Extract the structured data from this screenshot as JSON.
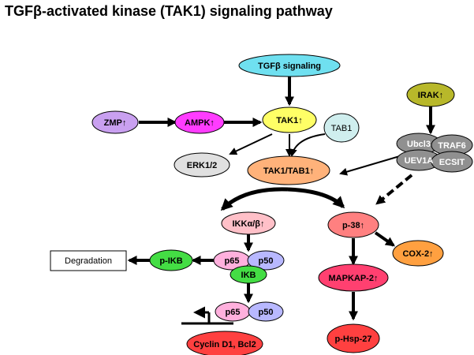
{
  "title": "TGFβ-activated kinase (TAK1) signaling pathway",
  "colors": {
    "tgfb": "#6fe0f0",
    "zmp": "#c9a0f0",
    "ampk": "#ff3cff",
    "tak1": "#ffff66",
    "tab1": "#cfeeee",
    "erk": "#e0e0e0",
    "tak_tab": "#ffb27a",
    "irak": "#b8b82a",
    "gray_complex": "#909090",
    "ikk": "#ffc0c8",
    "p38": "#ff8080",
    "cox2": "#ffa040",
    "pikb": "#44dd44",
    "p65": "#ffb0dd",
    "p50": "#b8b8ff",
    "ikb": "#44dd44",
    "mapkap": "#ff4070",
    "hsp27": "#ff4040",
    "cyclin": "#ff4040"
  },
  "nodes": {
    "tgfb": "TGFβ signaling",
    "zmp": "ZMP↑",
    "ampk": "AMPK↑",
    "tak1": "TAK1↑",
    "tab1": "TAB1",
    "erk": "ERK1/2",
    "tak_tab": "TAK1/TAB1↑",
    "irak": "IRAK↑",
    "ubcl3": "Ubcl3",
    "traf6": "TRAF6",
    "uev1a": "UEV1A",
    "ecsit": "ECSIT",
    "ikk": "IKKα/β↑",
    "p38": "p-38↑",
    "cox2": "COX-2↑",
    "degradation": "Degradation",
    "pikb": "p-IKB",
    "p65_a": "p65",
    "p50_a": "p50",
    "ikb": "IKB",
    "mapkap": "MAPKAP-2↑",
    "p65_b": "p65",
    "p50_b": "p50",
    "cyclin": "Cyclin D1, Bcl2",
    "hsp27": "p-Hsp-27"
  }
}
